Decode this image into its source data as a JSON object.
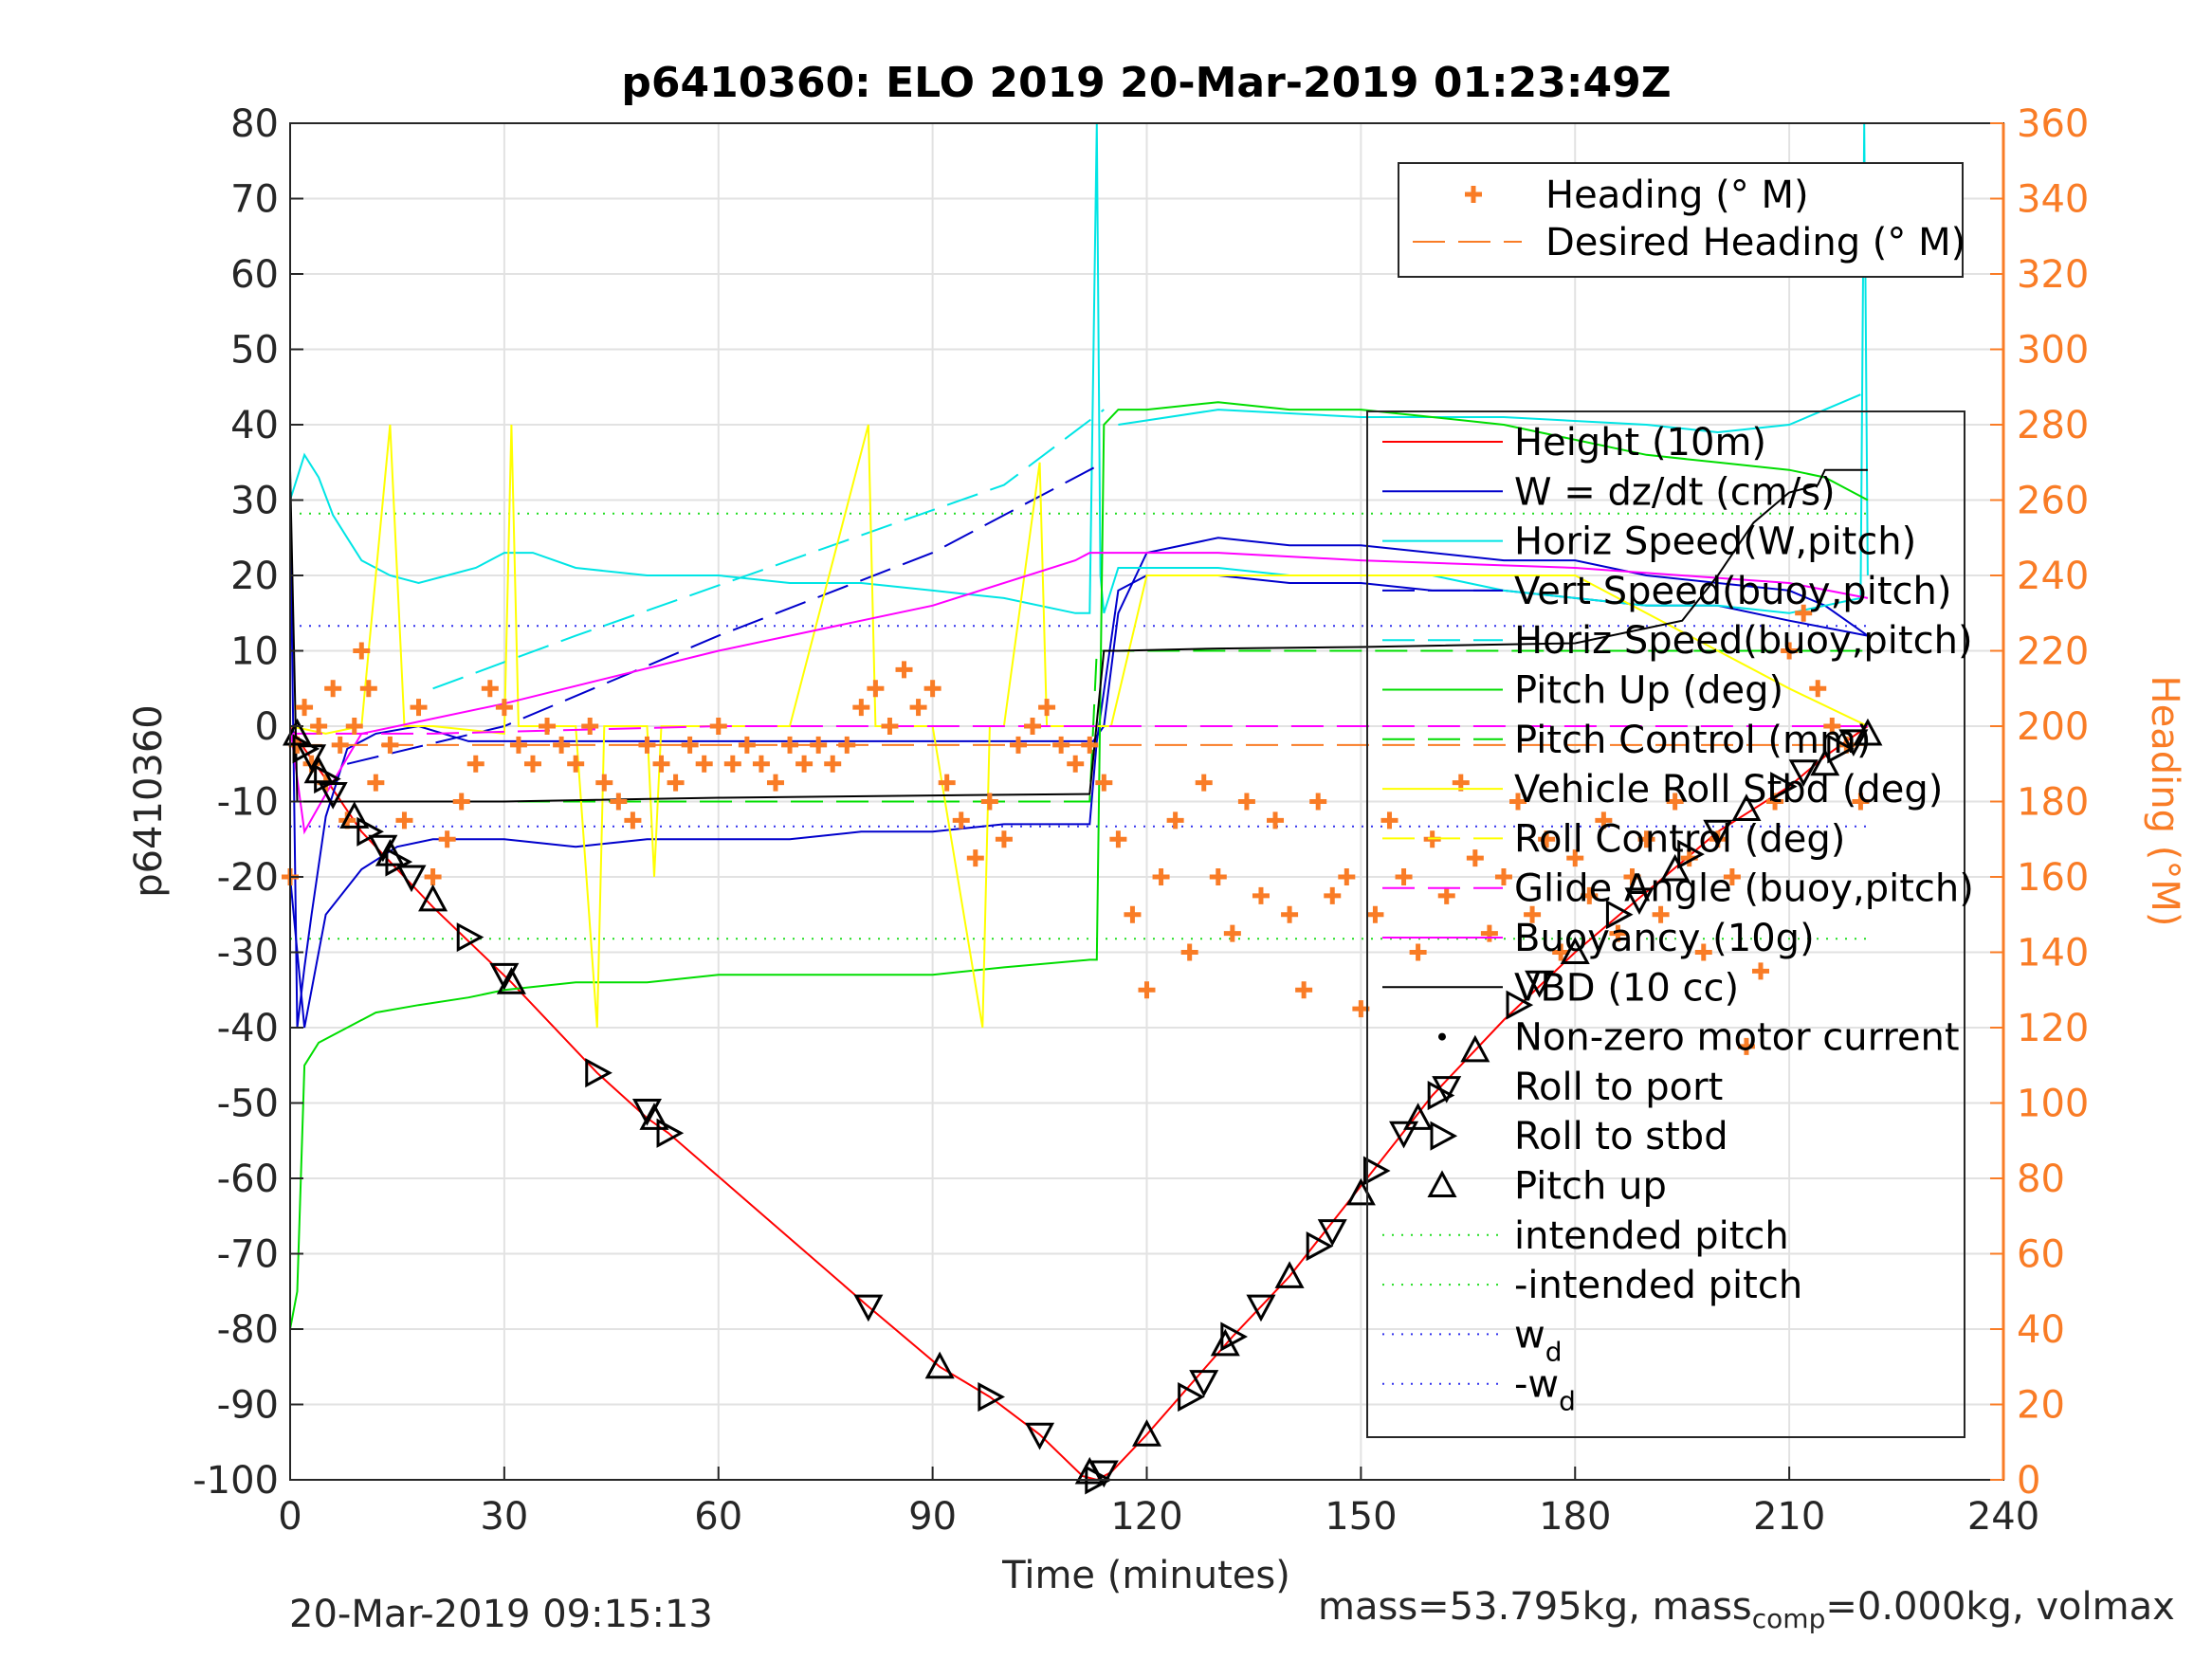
{
  "chart_data": {
    "type": "line",
    "title": "p6410360: ELO 2019 20-Mar-2019 01:23:49Z",
    "xlabel": "Time (minutes)",
    "ylabel_left": "p6410360",
    "ylabel_right": "Heading (°M)",
    "xlim": [
      0,
      240
    ],
    "ylim_left": [
      -100,
      80
    ],
    "ylim_right": [
      0,
      360
    ],
    "x_ticks": [
      0,
      30,
      60,
      90,
      120,
      150,
      180,
      210,
      240
    ],
    "y_ticks_left": [
      -100,
      -90,
      -80,
      -70,
      -60,
      -50,
      -40,
      -30,
      -20,
      -10,
      0,
      10,
      20,
      30,
      40,
      50,
      60,
      70,
      80
    ],
    "y_ticks_right": [
      0,
      20,
      40,
      60,
      80,
      100,
      120,
      140,
      160,
      180,
      200,
      220,
      240,
      260,
      280,
      300,
      320,
      340,
      360
    ],
    "grid": true,
    "legend_heading": [
      {
        "name": "Heading (° M)",
        "color": "#f97c26",
        "style": "plus"
      },
      {
        "name": "Desired Heading (° M)",
        "color": "#f97c26",
        "style": "dash"
      }
    ],
    "legend_main": [
      {
        "name": "Height (10m)",
        "color": "#ff0000",
        "style": "solid"
      },
      {
        "name": "W = dz/dt (cm/s)",
        "color": "#0000cc",
        "style": "solid"
      },
      {
        "name": "Horiz Speed(W,pitch)",
        "color": "#00e5e5",
        "style": "solid"
      },
      {
        "name": "Vert Speed(buoy,pitch)",
        "color": "#0000cc",
        "style": "dash"
      },
      {
        "name": "Horiz Speed(buoy,pitch)",
        "color": "#00e5e5",
        "style": "dash"
      },
      {
        "name": "Pitch Up (deg)",
        "color": "#00dd00",
        "style": "solid"
      },
      {
        "name": "Pitch Control (mm)",
        "color": "#00dd00",
        "style": "dash"
      },
      {
        "name": "Vehicle Roll Stbd (deg)",
        "color": "#ffff00",
        "style": "solid"
      },
      {
        "name": "Roll Control (deg)",
        "color": "#ffff00",
        "style": "dash"
      },
      {
        "name": "Glide Angle (buoy,pitch)",
        "color": "#ff00ff",
        "style": "dash"
      },
      {
        "name": "Buoyancy (10g)",
        "color": "#ff00ff",
        "style": "solid"
      },
      {
        "name": "VBD (10 cc)",
        "color": "#000000",
        "style": "solid"
      },
      {
        "name": "Non-zero motor current",
        "color": "#000000",
        "style": "dot"
      },
      {
        "name": "Roll to port",
        "color": "#000000",
        "style": "tri-left"
      },
      {
        "name": "Roll to stbd",
        "color": "#000000",
        "style": "tri-right"
      },
      {
        "name": "Pitch up",
        "color": "#000000",
        "style": "tri-up"
      },
      {
        "name": "intended pitch",
        "color": "#22dd22",
        "style": "dot"
      },
      {
        "name": "-intended pitch",
        "color": "#22dd22",
        "style": "dot"
      },
      {
        "name": "w",
        "sub": "d",
        "color": "#3333ee",
        "style": "dot"
      },
      {
        "name": "-w",
        "sub": "d",
        "color": "#3333ee",
        "style": "dot"
      }
    ],
    "reference_lines": {
      "intended_pitch": 28.2,
      "w_d": 13.3
    },
    "series": [
      {
        "key": "height",
        "x": [
          0,
          2,
          5,
          10,
          20,
          31,
          43,
          50,
          53,
          81,
          91,
          98,
          105,
          111,
          113,
          115,
          120,
          132,
          140,
          150,
          160,
          170,
          180,
          190,
          200,
          210,
          215,
          221
        ],
        "y": [
          0,
          -3,
          -7,
          -14,
          -24,
          -34,
          -46,
          -52,
          -54,
          -77,
          -85,
          -89,
          -94,
          -99.5,
          -100,
          -99,
          -94,
          -81,
          -73,
          -61,
          -49,
          -39,
          -30,
          -22,
          -14,
          -8,
          -4,
          0
        ]
      },
      {
        "key": "w",
        "x": [
          0,
          1,
          2,
          3,
          5,
          8,
          12,
          18,
          25,
          30,
          40,
          50,
          60,
          70,
          80,
          90,
          100,
          112,
          112.5,
          114,
          116,
          120,
          130,
          140,
          150,
          160,
          170,
          180,
          190,
          200,
          210,
          215,
          221
        ],
        "y": [
          30,
          -40,
          -32,
          -25,
          -12,
          -3,
          -1,
          0,
          -2,
          -2,
          -2,
          -2,
          -2,
          -2,
          -2,
          -2,
          -2,
          -2,
          -2,
          0,
          15,
          23,
          25,
          24,
          24,
          23,
          22,
          22,
          20,
          19,
          18,
          16,
          12
        ]
      },
      {
        "key": "w_descent",
        "x": [
          0,
          2,
          5,
          10,
          15,
          20,
          30,
          40,
          50,
          60,
          70,
          80,
          90,
          100,
          112,
          113,
          116,
          120,
          130,
          140,
          150,
          160,
          170,
          180,
          190,
          200,
          210,
          221
        ],
        "y": [
          -20,
          -40,
          -25,
          -19,
          -16,
          -15,
          -15,
          -16,
          -15,
          -15,
          -15,
          -14,
          -14,
          -13,
          -13,
          -2,
          18,
          20,
          20,
          19,
          19,
          18,
          18,
          17,
          16,
          16,
          14,
          12
        ]
      },
      {
        "key": "horiz_speed",
        "x": [
          0,
          2,
          4,
          6,
          8,
          10,
          14,
          18,
          22,
          26,
          30,
          34,
          40,
          50,
          60,
          70,
          80,
          90,
          100,
          110,
          112,
          113,
          113.5,
          114,
          116,
          120,
          130,
          140,
          150,
          160,
          170,
          180,
          190,
          200,
          210,
          215,
          220,
          220.5,
          221
        ],
        "y": [
          30,
          36,
          33,
          28,
          25,
          22,
          20,
          19,
          20,
          21,
          23,
          23,
          21,
          20,
          20,
          19,
          19,
          18,
          17,
          15,
          15,
          80,
          20,
          15,
          21,
          21,
          21,
          20,
          20,
          20,
          18,
          17,
          16,
          16,
          15,
          16,
          17,
          80,
          20
        ]
      },
      {
        "key": "horiz_speed_upper",
        "x": [
          116,
          130,
          150,
          170,
          190,
          200,
          210,
          215,
          220
        ],
        "y": [
          40,
          42,
          41,
          41,
          40,
          39,
          40,
          42,
          44
        ]
      },
      {
        "key": "vert_speed_buoy",
        "x": [
          8,
          30,
          60,
          90,
          114
        ],
        "y": [
          -5,
          0,
          12,
          23,
          35
        ]
      },
      {
        "key": "horiz_speed_buoy",
        "x": [
          20,
          40,
          70,
          100,
          114
        ],
        "y": [
          5,
          12,
          22,
          32,
          42
        ]
      },
      {
        "key": "pitch_up",
        "x": [
          0,
          1,
          2,
          4,
          8,
          12,
          18,
          25,
          30,
          40,
          50,
          60,
          70,
          80,
          90,
          100,
          112,
          113,
          114,
          116,
          120,
          130,
          140,
          150,
          160,
          170,
          180,
          190,
          200,
          210,
          215,
          221
        ],
        "y": [
          -80,
          -75,
          -45,
          -42,
          -40,
          -38,
          -37,
          -36,
          -35,
          -34,
          -34,
          -33,
          -33,
          -33,
          -33,
          -32,
          -31,
          -31,
          40,
          42,
          42,
          43,
          42,
          42,
          41,
          40,
          38,
          36,
          35,
          34,
          33,
          30
        ]
      },
      {
        "key": "pitch_control",
        "x": [
          0,
          30,
          60,
          90,
          112,
          113,
          150,
          180,
          210,
          221
        ],
        "y": [
          -10,
          -10,
          -10,
          -10,
          -10,
          10,
          10,
          10,
          10,
          10
        ]
      },
      {
        "key": "roll_stbd",
        "x": [
          0,
          5,
          10,
          14,
          16,
          20,
          30,
          31,
          32,
          40,
          43,
          44,
          50,
          51,
          52,
          55,
          60,
          70,
          81,
          82,
          90,
          97,
          98,
          100,
          105,
          106,
          110,
          113,
          115,
          120,
          150,
          180,
          210,
          221
        ],
        "y": [
          0,
          -1,
          0,
          40,
          0,
          0,
          -1,
          40,
          0,
          0,
          -40,
          0,
          0,
          -20,
          0,
          0,
          0,
          0,
          40,
          0,
          0,
          -40,
          0,
          0,
          35,
          0,
          0,
          0,
          0,
          20,
          20,
          20,
          5,
          0
        ]
      },
      {
        "key": "buoyancy",
        "x": [
          0,
          2,
          5,
          10,
          30,
          60,
          90,
          110,
          112,
          115,
          130,
          150,
          180,
          210,
          221
        ],
        "y": [
          0,
          -14,
          -9,
          -1,
          3,
          10,
          16,
          22,
          23,
          23,
          23,
          22,
          21,
          19,
          17
        ]
      },
      {
        "key": "glide_angle",
        "x": [
          0,
          20,
          60,
          100,
          112,
          150,
          190,
          221
        ],
        "y": [
          -1,
          -1,
          0,
          0,
          0,
          0,
          0,
          0
        ]
      },
      {
        "key": "vbd",
        "x": [
          0,
          1,
          2,
          5,
          30,
          60,
          90,
          112,
          114,
          116,
          130,
          150,
          180,
          195,
          200,
          205,
          210,
          214,
          215,
          220,
          221
        ],
        "y": [
          34,
          -10,
          -10,
          -10,
          -10,
          -9.5,
          -9.2,
          -9,
          10,
          10,
          10.3,
          10.5,
          11,
          14,
          20,
          27,
          31,
          32,
          34,
          34,
          34
        ]
      }
    ],
    "heading_markers_right_axis": {
      "x": [
        0,
        1,
        2,
        3,
        4,
        5,
        6,
        7,
        8,
        9,
        10,
        11,
        12,
        14,
        16,
        18,
        20,
        22,
        24,
        26,
        28,
        30,
        32,
        34,
        36,
        38,
        40,
        42,
        44,
        46,
        48,
        50,
        52,
        54,
        56,
        58,
        60,
        62,
        64,
        66,
        68,
        70,
        72,
        74,
        76,
        78,
        80,
        82,
        84,
        86,
        88,
        90,
        92,
        94,
        96,
        98,
        100,
        102,
        104,
        106,
        108,
        110,
        112,
        114,
        116,
        118,
        120,
        122,
        124,
        126,
        128,
        130,
        132,
        134,
        136,
        138,
        140,
        142,
        144,
        146,
        148,
        150,
        152,
        154,
        156,
        158,
        160,
        162,
        164,
        166,
        168,
        170,
        172,
        174,
        176,
        178,
        180,
        182,
        184,
        186,
        188,
        190,
        192,
        194,
        196,
        198,
        200,
        202,
        204,
        206,
        208,
        210,
        212,
        214,
        216,
        218,
        220
      ],
      "y": [
        160,
        195,
        205,
        190,
        200,
        185,
        210,
        195,
        175,
        200,
        220,
        210,
        185,
        195,
        175,
        205,
        160,
        170,
        180,
        190,
        210,
        205,
        195,
        190,
        200,
        195,
        190,
        200,
        185,
        180,
        175,
        195,
        190,
        185,
        195,
        190,
        200,
        190,
        195,
        190,
        185,
        195,
        190,
        195,
        190,
        195,
        205,
        210,
        200,
        215,
        205,
        210,
        185,
        175,
        165,
        180,
        170,
        195,
        200,
        205,
        195,
        190,
        195,
        185,
        170,
        150,
        130,
        160,
        175,
        140,
        185,
        160,
        145,
        180,
        155,
        175,
        150,
        130,
        180,
        155,
        160,
        125,
        150,
        175,
        160,
        140,
        170,
        155,
        185,
        165,
        145,
        160,
        180,
        150,
        170,
        140,
        165,
        155,
        175,
        145,
        160,
        170,
        150,
        180,
        165,
        140,
        170,
        160,
        115,
        135,
        180,
        220,
        230,
        210,
        200,
        195,
        180
      ]
    },
    "desired_heading": {
      "x": [
        0,
        112,
        113,
        221
      ],
      "y": [
        195,
        195,
        195,
        195
      ]
    },
    "triangle_markers": {
      "x": [
        1,
        2,
        3,
        4,
        5,
        6,
        9,
        11,
        13,
        14,
        15,
        17,
        20,
        25,
        30,
        31,
        43,
        50,
        51,
        53,
        81,
        91,
        98,
        105,
        112,
        113,
        114,
        120,
        126,
        128,
        131,
        132,
        136,
        140,
        144,
        146,
        150,
        152,
        156,
        158,
        161,
        162,
        166,
        172,
        175,
        180,
        186,
        189,
        194,
        196,
        200,
        204,
        209,
        212,
        215,
        217,
        219,
        221
      ],
      "y": [
        -1,
        -3,
        -4,
        -6,
        -7,
        -9,
        -12,
        -14,
        -16,
        -17,
        -18,
        -20,
        -23,
        -28,
        -33,
        -34,
        -46,
        -51,
        -52,
        -54,
        -77,
        -85,
        -89,
        -94,
        -99,
        -100,
        -99,
        -94,
        -89,
        -87,
        -82,
        -81,
        -77,
        -73,
        -69,
        -67,
        -62,
        -59,
        -54,
        -52,
        -49,
        -48,
        -43,
        -37,
        -34,
        -30,
        -25,
        -23,
        -19,
        -17,
        -14,
        -11,
        -8,
        -6,
        -5,
        -3,
        -2,
        -1
      ]
    },
    "timestamp": "20-Mar-2019 09:15:13",
    "mass_text": {
      "a": "mass=53.795kg, mass",
      "sub": "comp",
      "b": "=0.000kg, volmax"
    }
  }
}
